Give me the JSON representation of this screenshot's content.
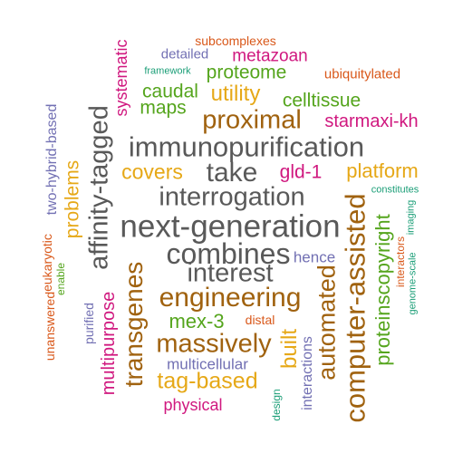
{
  "palette": {
    "gray": "#595959",
    "orange": "#e6a817",
    "brown": "#a0620f",
    "green": "#55a51d",
    "magenta": "#d0187f",
    "purple": "#7270b3",
    "red_orange": "#d9581a",
    "teal": "#1b9e77"
  },
  "words": [
    {
      "text": "subcomplexes",
      "color": "red_orange"
    },
    {
      "text": "detailed",
      "color": "purple"
    },
    {
      "text": "metazoan",
      "color": "magenta"
    },
    {
      "text": "framework",
      "color": "teal"
    },
    {
      "text": "proteome",
      "color": "green"
    },
    {
      "text": "ubiquitylated",
      "color": "red_orange"
    },
    {
      "text": "genome-scale",
      "color": "teal"
    },
    {
      "text": "caudal",
      "color": "green"
    },
    {
      "text": "utility",
      "color": "orange"
    },
    {
      "text": "maps",
      "color": "green"
    },
    {
      "text": "celltissue",
      "color": "green"
    },
    {
      "text": "proximal",
      "color": "brown"
    },
    {
      "text": "starmaxi-kh",
      "color": "magenta"
    },
    {
      "text": "immunopurification",
      "color": "gray"
    },
    {
      "text": "covers",
      "color": "orange"
    },
    {
      "text": "take",
      "color": "gray"
    },
    {
      "text": "gld-1",
      "color": "magenta"
    },
    {
      "text": "platform",
      "color": "orange"
    },
    {
      "text": "constitutes",
      "color": "teal"
    },
    {
      "text": "interrogation",
      "color": "gray"
    },
    {
      "text": "next-generation",
      "color": "gray"
    },
    {
      "text": "combines",
      "color": "gray"
    },
    {
      "text": "hence",
      "color": "purple"
    },
    {
      "text": "interest",
      "color": "gray"
    },
    {
      "text": "engineering",
      "color": "brown"
    },
    {
      "text": "mex-3",
      "color": "green"
    },
    {
      "text": "distal",
      "color": "red_orange"
    },
    {
      "text": "massively",
      "color": "brown"
    },
    {
      "text": "multicellular",
      "color": "purple"
    },
    {
      "text": "tag-based",
      "color": "orange"
    },
    {
      "text": "physical",
      "color": "magenta"
    },
    {
      "text": "systematic",
      "color": "magenta"
    },
    {
      "text": "two-hybrid-based",
      "color": "purple"
    },
    {
      "text": "affinity-tagged",
      "color": "gray"
    },
    {
      "text": "problems",
      "color": "orange"
    },
    {
      "text": "eukaryotic",
      "color": "red_orange"
    },
    {
      "text": "enable",
      "color": "green"
    },
    {
      "text": "unanswered",
      "color": "red_orange"
    },
    {
      "text": "purified",
      "color": "purple"
    },
    {
      "text": "multipurpose",
      "color": "magenta"
    },
    {
      "text": "transgenes",
      "color": "brown"
    },
    {
      "text": "built",
      "color": "orange"
    },
    {
      "text": "interactions",
      "color": "purple"
    },
    {
      "text": "automated",
      "color": "brown"
    },
    {
      "text": "design",
      "color": "teal"
    },
    {
      "text": "computer-assisted",
      "color": "brown"
    },
    {
      "text": "proteinscopyright",
      "color": "green"
    },
    {
      "text": "interactors",
      "color": "red_orange"
    },
    {
      "text": "imaging",
      "color": "teal"
    }
  ]
}
